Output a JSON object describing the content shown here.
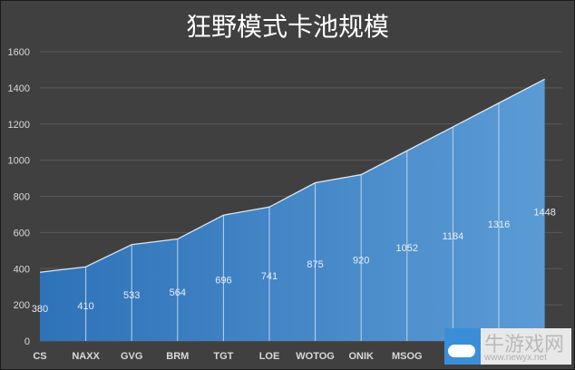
{
  "chart_data": {
    "type": "area",
    "title": "狂野模式卡池规模",
    "categories": [
      "CS",
      "NAXX",
      "GVG",
      "BRM",
      "TGT",
      "LOE",
      "WOTOG",
      "ONIK",
      "MSOG",
      "YO",
      "",
      ""
    ],
    "values": [
      380,
      410,
      533,
      564,
      696,
      741,
      875,
      920,
      1052,
      1184,
      1316,
      1448
    ],
    "data_labels": [
      "380",
      "410",
      "533",
      "564",
      "696",
      "741",
      "875",
      "920",
      "1052",
      "1184",
      "1316",
      "1448"
    ],
    "yticks": [
      "0",
      "200",
      "400",
      "600",
      "800",
      "1000",
      "1200",
      "1400",
      "1600"
    ],
    "ylim": [
      0,
      1600
    ],
    "xlabel": "",
    "ylabel": "",
    "grid": true,
    "legend": "none",
    "colors": {
      "fill_start": "#2e72b8",
      "fill_end": "#5b9bd5",
      "line": "#dce6f2",
      "background": "#404040"
    }
  },
  "watermark": {
    "text": "牛游戏网",
    "url": "www.newyx.net"
  }
}
